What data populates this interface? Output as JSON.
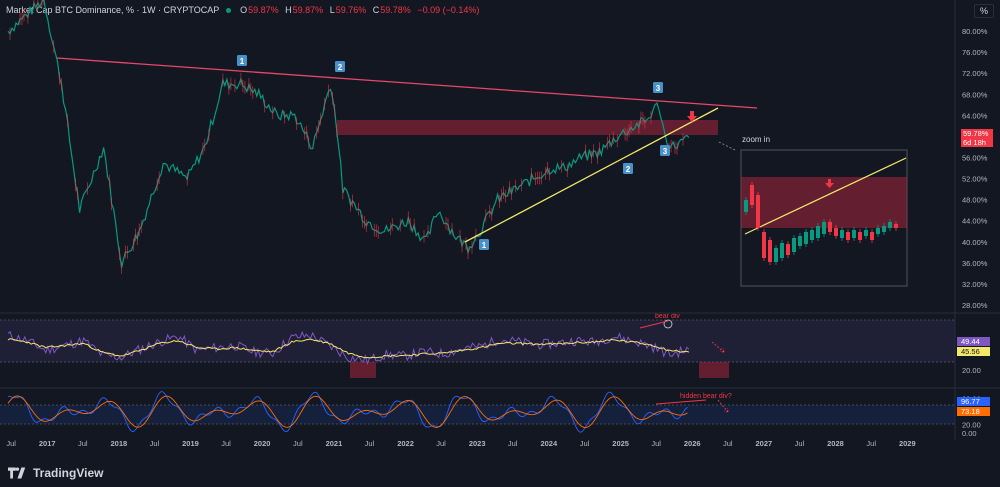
{
  "legend": {
    "title": "Market Cap BTC Dominance, % · 1W · CRYPTOCAP",
    "open_label": "O",
    "open": "59.87%",
    "high_label": "H",
    "high": "59.87%",
    "low_label": "L",
    "low": "59.76%",
    "close_label": "C",
    "close": "59.78%",
    "change": "−0.09 (−0.14%)"
  },
  "unit_button": "%",
  "brand": "TradingView",
  "colors": {
    "background": "#131722",
    "up": "#089981",
    "down": "#f23645",
    "trendline": "#e8476a",
    "support": "#f3e869",
    "zone": "#a6263c",
    "rsi": "#7e57c2",
    "rsi_ma": "#f3e869"
  },
  "chart_data": [
    {
      "type": "line",
      "title": "",
      "x": [
        "2016-06",
        "2016-12",
        "2017-03",
        "2017-06",
        "2017-10",
        "2018-01",
        "2018-04",
        "2018-08",
        "2018-12",
        "2019-03",
        "2019-06",
        "2019-09",
        "2019-12",
        "2020-03",
        "2020-06",
        "2020-09",
        "2020-12",
        "2021-01",
        "2021-02",
        "2021-06",
        "2021-09",
        "2022-01",
        "2022-04",
        "2022-06",
        "2022-09",
        "2022-11",
        "2023-01",
        "2023-04",
        "2023-07",
        "2023-10",
        "2024-01",
        "2024-03",
        "2024-06",
        "2024-09",
        "2024-12",
        "2025-03",
        "2025-05",
        "2025-06",
        "2025-07",
        "2025-08",
        "2025-09",
        "2025-11",
        "2025-12"
      ],
      "series": [
        {
          "values": [
            80,
            86,
            70,
            46,
            58,
            36,
            42,
            55,
            52,
            58,
            70,
            70,
            68,
            64,
            64,
            58,
            70,
            62,
            50,
            44,
            42,
            44,
            40,
            46,
            41,
            39,
            42,
            48,
            50,
            52,
            54,
            54,
            56,
            57,
            60,
            62,
            63,
            65,
            66,
            60,
            58,
            59,
            59.78
          ]
        }
      ],
      "xlabel": "",
      "ylabel": "",
      "ylim": [
        28,
        84
      ],
      "x_ticks": [
        "Jul",
        "2017",
        "Jul",
        "2018",
        "Jul",
        "2019",
        "Jul",
        "2020",
        "Jul",
        "2021",
        "Jul",
        "2022",
        "Jul",
        "2023",
        "Jul",
        "2024",
        "Jul",
        "2025",
        "Jul",
        "2026",
        "Jul",
        "2027",
        "Jul",
        "2028",
        "Jul",
        "2029"
      ],
      "y_ticks": [
        "80.00%",
        "76.00%",
        "72.00%",
        "68.00%",
        "64.00%",
        "60.00%",
        "56.00%",
        "52.00%",
        "48.00%",
        "44.00%",
        "40.00%",
        "36.00%",
        "32.00%",
        "28.00%"
      ],
      "last_value_label": "59.78%",
      "countdown_label": "6d 18h",
      "annotations": [
        "1",
        "2",
        "3",
        "1",
        "2",
        "3",
        "3"
      ],
      "zoom_label": "zoom in",
      "scale": "linear",
      "grid": false,
      "legend_position": "top-left"
    },
    {
      "type": "line",
      "title": "",
      "y_ticks": [
        "60.00",
        "20.00"
      ],
      "series": [
        {
          "values": [
            70,
            62,
            48,
            55,
            62,
            41,
            38,
            50,
            60,
            68,
            48,
            52,
            55,
            46,
            44,
            66,
            70,
            55,
            38,
            34,
            42,
            40,
            46,
            43,
            50,
            54,
            64,
            60,
            56,
            58,
            62,
            60,
            68,
            62,
            54,
            42,
            49.44
          ]
        },
        {
          "values": [
            64,
            60,
            52,
            55,
            58,
            45,
            40,
            48,
            58,
            62,
            52,
            50,
            52,
            48,
            46,
            60,
            64,
            58,
            44,
            38,
            40,
            41,
            43,
            44,
            48,
            52,
            58,
            58,
            57,
            57,
            59,
            60,
            63,
            60,
            56,
            48,
            45.56
          ]
        }
      ],
      "last_values": [
        "49.44",
        "45.56"
      ],
      "annotations": [
        "bear div"
      ],
      "ylim": [
        0,
        100
      ]
    },
    {
      "type": "line",
      "title": "",
      "y_ticks": [
        "80.00",
        "20.00",
        "0.00"
      ],
      "last_values": [
        "96.77",
        "73.18"
      ],
      "annotations": [
        "hidden bear div?"
      ],
      "ylim": [
        0,
        100
      ]
    }
  ]
}
